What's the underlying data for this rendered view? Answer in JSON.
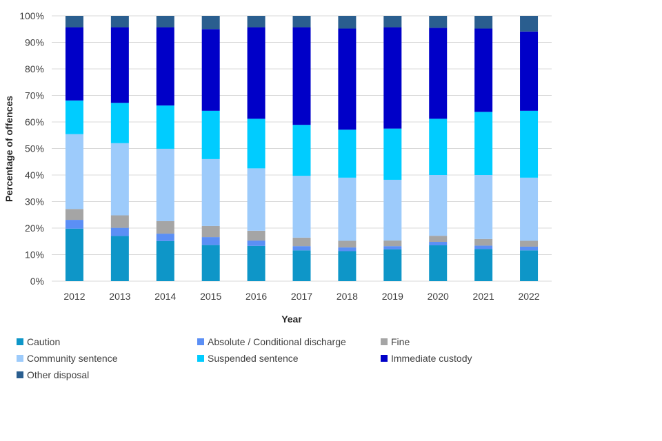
{
  "chart_data": {
    "type": "bar",
    "stacked": true,
    "percent": true,
    "title": "",
    "xlabel": "Year",
    "ylabel": "Percentage of offences",
    "ylim": [
      0,
      100
    ],
    "yticks": [
      "0%",
      "10%",
      "20%",
      "30%",
      "40%",
      "50%",
      "60%",
      "70%",
      "80%",
      "90%",
      "100%"
    ],
    "grid": true,
    "legend_position": "bottom",
    "categories": [
      "2012",
      "2013",
      "2014",
      "2015",
      "2016",
      "2017",
      "2018",
      "2019",
      "2020",
      "2021",
      "2022"
    ],
    "series": [
      {
        "name": "Caution",
        "color": "#0e96c8",
        "values": [
          19.8,
          17.0,
          15.1,
          13.6,
          13.3,
          11.6,
          11.3,
          12.0,
          13.5,
          12.1,
          11.6
        ]
      },
      {
        "name": "Absolute / Conditional discharge",
        "color": "#5b8ff5",
        "values": [
          3.3,
          3.1,
          2.8,
          3.0,
          2.0,
          1.6,
          1.4,
          1.2,
          1.3,
          1.3,
          1.4
        ]
      },
      {
        "name": "Fine",
        "color": "#a5a5a5",
        "values": [
          4.1,
          4.7,
          4.7,
          4.2,
          3.7,
          3.2,
          2.5,
          2.1,
          2.3,
          2.5,
          2.2
        ]
      },
      {
        "name": "Community sentence",
        "color": "#9dcbfb",
        "values": [
          28.2,
          27.2,
          27.3,
          25.2,
          23.5,
          23.3,
          23.8,
          22.9,
          22.9,
          24.1,
          23.8
        ]
      },
      {
        "name": "Suspended sentence",
        "color": "#00ccff",
        "values": [
          12.7,
          15.2,
          16.3,
          18.2,
          18.7,
          19.2,
          18.1,
          19.3,
          21.2,
          23.8,
          25.2
        ]
      },
      {
        "name": "Immediate custody",
        "color": "#0000c8",
        "values": [
          27.6,
          28.5,
          29.5,
          30.8,
          34.5,
          36.8,
          38.1,
          38.2,
          34.3,
          31.4,
          29.9
        ]
      },
      {
        "name": "Other disposal",
        "color": "#2a5e8f",
        "values": [
          4.3,
          4.3,
          4.3,
          5.0,
          4.3,
          4.3,
          4.8,
          4.3,
          4.5,
          4.8,
          5.9
        ]
      }
    ]
  }
}
